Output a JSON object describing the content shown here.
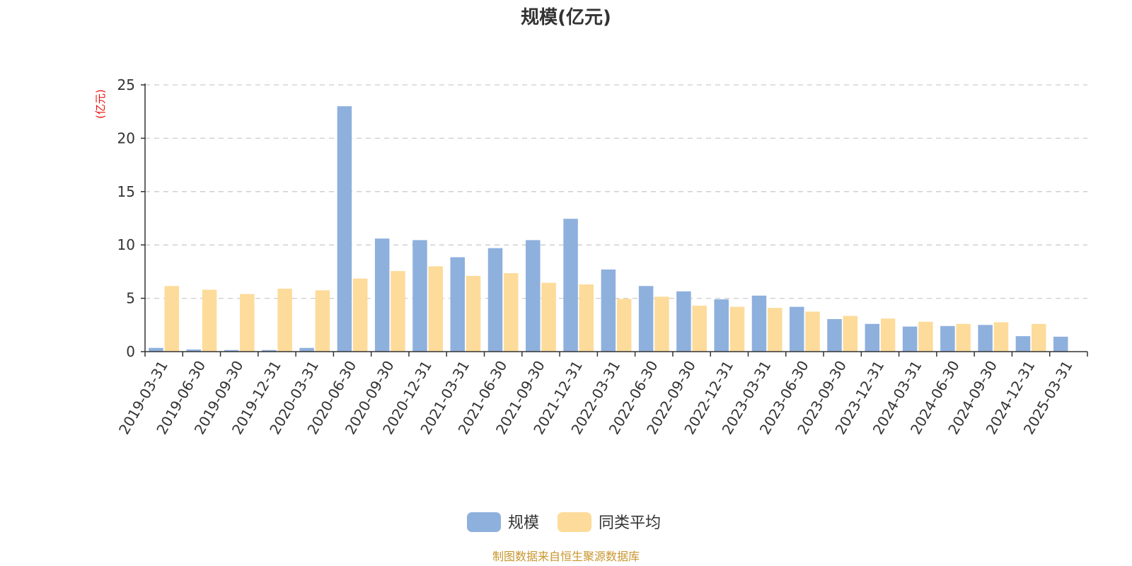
{
  "chart_data": {
    "type": "bar",
    "title": "规模(亿元)",
    "ylabel": "(亿元)",
    "ylim": [
      0,
      25
    ],
    "yticks": [
      0,
      5,
      10,
      15,
      20,
      25
    ],
    "grid": true,
    "legend_position": "bottom-center",
    "categories": [
      "2019-03-31",
      "2019-06-30",
      "2019-09-30",
      "2019-12-31",
      "2020-03-31",
      "2020-06-30",
      "2020-09-30",
      "2020-12-31",
      "2021-03-31",
      "2021-06-30",
      "2021-09-30",
      "2021-12-31",
      "2022-03-31",
      "2022-06-30",
      "2022-09-30",
      "2022-12-31",
      "2023-03-31",
      "2023-06-30",
      "2023-09-30",
      "2023-12-31",
      "2024-03-31",
      "2024-06-30",
      "2024-09-30",
      "2024-12-31",
      "2025-03-31"
    ],
    "series": [
      {
        "name": "规模",
        "color": "#8eb0dd",
        "values": [
          0.35,
          0.2,
          0.15,
          0.15,
          0.35,
          23.0,
          10.6,
          10.45,
          8.85,
          9.7,
          10.45,
          12.45,
          7.7,
          6.15,
          5.65,
          4.9,
          5.25,
          4.2,
          3.05,
          2.6,
          2.35,
          2.4,
          2.5,
          1.45,
          1.4
        ]
      },
      {
        "name": "同类平均",
        "color": "#fddb9a",
        "values": [
          6.15,
          5.8,
          5.4,
          5.9,
          5.75,
          6.85,
          7.55,
          8.0,
          7.1,
          7.35,
          6.45,
          6.3,
          4.95,
          5.15,
          4.3,
          4.2,
          4.1,
          3.75,
          3.35,
          3.1,
          2.8,
          2.6,
          2.75,
          2.6,
          null
        ]
      }
    ],
    "source": "制图数据来自恒生聚源数据库",
    "title_color": "#333333",
    "unit_color": "#e8120c",
    "source_color": "#c8962e"
  }
}
